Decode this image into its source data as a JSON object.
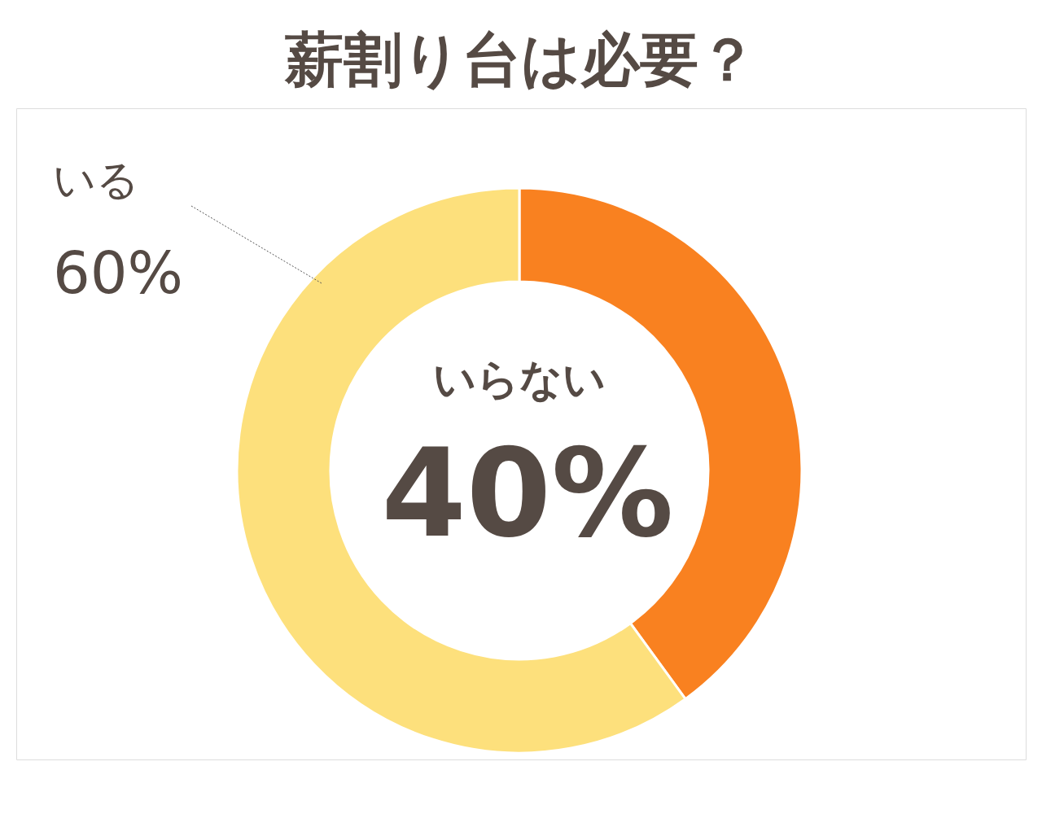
{
  "chart_data": {
    "type": "donut",
    "title": "薪割り台は必要？",
    "categories": [
      "いらない",
      "いる"
    ],
    "values": [
      40,
      60
    ],
    "colors": [
      "#f98120",
      "#fde07c"
    ],
    "value_labels": [
      "40%",
      "60%"
    ],
    "legend": false
  }
}
